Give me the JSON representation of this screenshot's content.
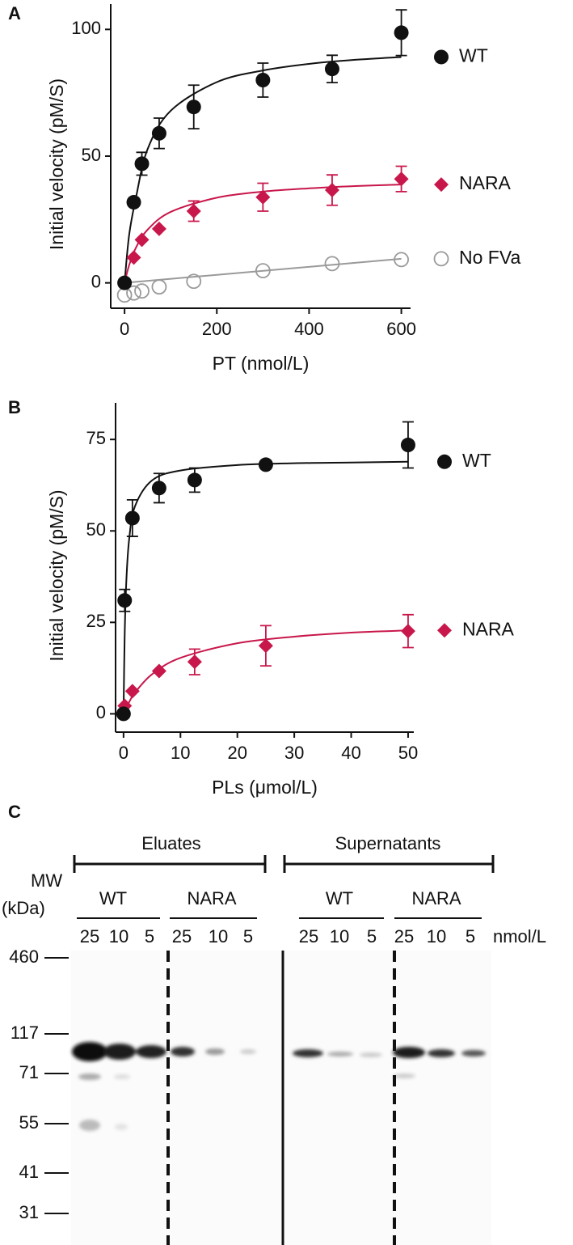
{
  "chart_data": [
    {
      "type": "scatter",
      "panel": "A",
      "x_label": "PT (nmol/L)",
      "y_label": "Initial velocity (pM/S)",
      "xlim": [
        -30,
        620
      ],
      "ylim": [
        -10,
        110
      ],
      "xticks": [
        0,
        200,
        400,
        600
      ],
      "yticks": [
        0,
        50,
        100
      ],
      "series": [
        {
          "name": "WT",
          "color": "#111111",
          "marker": "circle",
          "x": [
            0,
            20,
            37.5,
            75,
            150,
            300,
            450,
            600
          ],
          "values": [
            0,
            31.8,
            47,
            59,
            69.4,
            80,
            84.4,
            98.7
          ],
          "errors": [
            null,
            null,
            4.5,
            6,
            8.6,
            6.7,
            5.4,
            9
          ],
          "fit": {
            "x": [
              0,
              10,
              25,
              50,
              100,
              200,
              300,
              400,
              500,
              600
            ],
            "values": [
              0,
              19,
              33.9,
              52.8,
              67.9,
              79.2,
              83.8,
              86.4,
              88,
              89.1
            ]
          }
        },
        {
          "name": "NARA",
          "color": "#c8174b",
          "marker": "diamond",
          "x": [
            0,
            20,
            37.5,
            75,
            150,
            300,
            450,
            600
          ],
          "values": [
            0,
            10,
            17,
            21.3,
            28.3,
            33.8,
            36.6,
            41
          ],
          "errors": [
            null,
            null,
            null,
            null,
            4,
            5.5,
            6,
            5
          ],
          "fit": {
            "x": [
              0,
              10,
              25,
              50,
              100,
              200,
              300,
              400,
              500,
              600
            ],
            "values": [
              0,
              7,
              14,
              21,
              28,
              33.6,
              36,
              37.3,
              38.2,
              38.8
            ]
          }
        },
        {
          "name": "No FVa",
          "color": "#9a9a9a",
          "marker": "open-circle",
          "x": [
            0,
            20,
            37.5,
            75,
            150,
            300,
            450,
            600
          ],
          "values": [
            -4.8,
            -4,
            -3.2,
            -1.6,
            0.6,
            4.8,
            7.6,
            9.2
          ],
          "errors": [
            null,
            null,
            null,
            null,
            null,
            null,
            null,
            null
          ],
          "fit": {
            "x": [
              0,
              600
            ],
            "values": [
              0,
              9.5
            ]
          }
        }
      ]
    },
    {
      "type": "scatter",
      "panel": "B",
      "x_label": "PLs (μmol/L)",
      "y_label": "Initial velocity (pM/S)",
      "xlim": [
        -1.4,
        51
      ],
      "ylim": [
        -5,
        85
      ],
      "xticks": [
        0,
        10,
        20,
        30,
        40,
        50
      ],
      "yticks": [
        0,
        25,
        50,
        75
      ],
      "series": [
        {
          "name": "WT",
          "color": "#111111",
          "marker": "circle",
          "x": [
            0,
            0.2,
            1.56,
            6.25,
            12.5,
            25,
            50
          ],
          "values": [
            0,
            31,
            53.5,
            61.7,
            63.9,
            68.1,
            73.5
          ],
          "errors": [
            null,
            3,
            5,
            4,
            3.3,
            null,
            6.3
          ],
          "fit": {
            "x": [
              0,
              0.2,
              0.5,
              1,
              2,
              5,
              10,
              20,
              30,
              40,
              50
            ],
            "values": [
              0,
              21.4,
              36.6,
              47.9,
              56.7,
              63.8,
              66.5,
              68,
              68.5,
              68.7,
              68.9
            ]
          }
        },
        {
          "name": "NARA",
          "color": "#c8174b",
          "marker": "diamond",
          "x": [
            0.2,
            1.56,
            6.25,
            12.5,
            25,
            50
          ],
          "values": [
            2.2,
            6.2,
            11.7,
            14.2,
            18.6,
            22.6
          ],
          "errors": [
            null,
            null,
            null,
            3.5,
            5.5,
            4.5
          ],
          "fit": {
            "x": [
              0,
              0.2,
              0.5,
              1,
              2,
              5,
              10,
              20,
              30,
              40,
              50
            ],
            "values": [
              0,
              0.72,
              1.73,
              3.25,
              5.78,
              10.8,
              15.3,
              19.3,
              21.1,
              22.2,
              22.8
            ]
          }
        }
      ]
    }
  ],
  "panel_c": {
    "label": "C",
    "mw_title": [
      "MW",
      "(kDa)"
    ],
    "unit": "nmol/L",
    "groups": [
      {
        "label": "Eluates",
        "subgroups": [
          {
            "label": "WT",
            "lanes": [
              25,
              10,
              5
            ]
          },
          {
            "label": "NARA",
            "lanes": [
              25,
              10,
              5
            ]
          }
        ]
      },
      {
        "label": "Supernatants",
        "subgroups": [
          {
            "label": "WT",
            "lanes": [
              25,
              10,
              5
            ]
          },
          {
            "label": "NARA",
            "lanes": [
              25,
              10,
              5
            ]
          }
        ]
      }
    ],
    "mw_markers": [
      460,
      117,
      71,
      55,
      41,
      31
    ]
  }
}
